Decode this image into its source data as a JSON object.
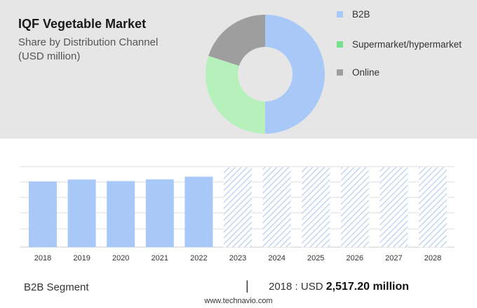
{
  "header": {
    "title": "IQF Vegetable Market",
    "subtitle_line1": "Share by Distribution Channel",
    "subtitle_line2": "(USD million)"
  },
  "legend": [
    {
      "label": "B2B",
      "color": "#a8c8f8"
    },
    {
      "label": "Supermarket/hypermarket",
      "color": "#78e08a"
    },
    {
      "label": "Online",
      "color": "#9e9e9e"
    }
  ],
  "footer": {
    "segment_label": "B2B Segment",
    "divider": "|",
    "year_text": "2018 : USD",
    "value_text": "2,517.20 million"
  },
  "source": "www.technavio.com",
  "chart_data": [
    {
      "type": "pie",
      "donut": true,
      "categories": [
        "B2B",
        "Supermarket/hypermarket",
        "Online"
      ],
      "values": [
        50,
        30,
        20
      ],
      "colors": [
        "#a8c8f8",
        "#b6f0bb",
        "#9e9e9e"
      ]
    },
    {
      "type": "bar",
      "categories": [
        "2018",
        "2019",
        "2020",
        "2021",
        "2022",
        "2023",
        "2024",
        "2025",
        "2026",
        "2027",
        "2028"
      ],
      "values": [
        2517.2,
        2590,
        2530,
        2595,
        2700,
        3060,
        3060,
        3060,
        3060,
        3060,
        3060
      ],
      "forecast_from": "2023",
      "ylim": [
        0,
        3300
      ],
      "grid": true,
      "bar_color": "#a8c8f8",
      "forecast_style": "hatched"
    }
  ]
}
